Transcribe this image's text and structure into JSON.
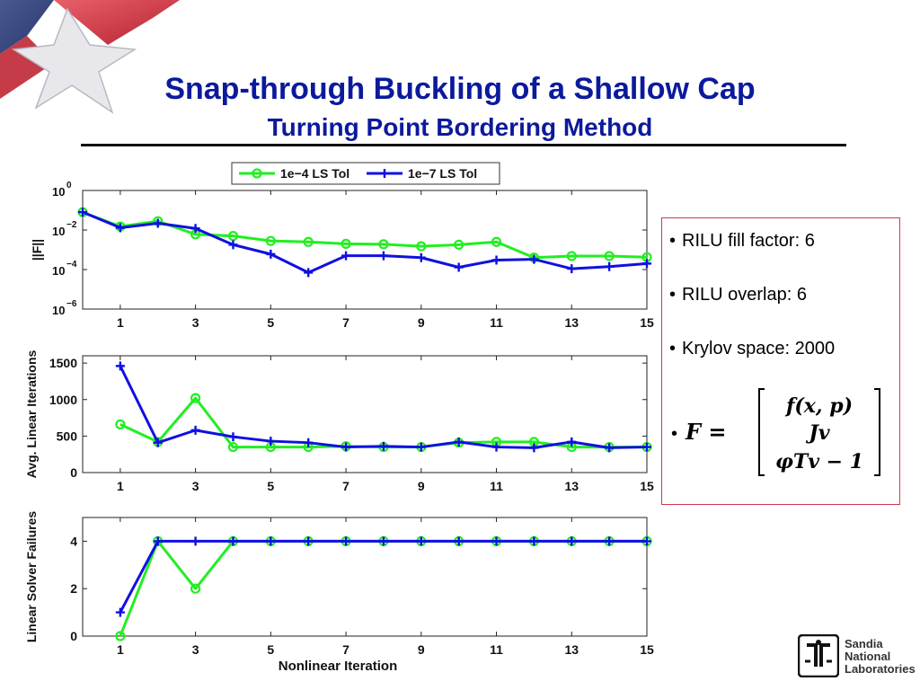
{
  "slide": {
    "title": "Snap-through Buckling of a Shallow Cap",
    "subtitle": "Turning Point Bordering Method"
  },
  "info": {
    "bullets": [
      "RILU fill factor:  6",
      "RILU overlap: 6",
      "Krylov space:  2000"
    ],
    "equation": {
      "lhs": "F =",
      "rows": [
        "f(x, p)",
        "Jv",
        "φTv − 1"
      ]
    }
  },
  "logo": {
    "lines": [
      "Sandia",
      "National",
      "Laboratories"
    ]
  },
  "legend": [
    "1e−4 LS Tol",
    "1e−7 LS Tol"
  ],
  "colors": {
    "green": "#22ee22",
    "blue": "#1010e0",
    "title": "#0b1a9c",
    "box_border": "#d03a4a"
  },
  "chart_data": [
    {
      "type": "line",
      "ylabel": "||F||",
      "xlabel": "",
      "yscale": "log",
      "x": [
        0,
        1,
        2,
        3,
        4,
        5,
        6,
        7,
        8,
        9,
        10,
        11,
        12,
        13,
        14,
        15
      ],
      "xticks": [
        1,
        3,
        5,
        7,
        9,
        11,
        13,
        15
      ],
      "xlim": [
        0,
        15
      ],
      "ylim_exp": [
        -6,
        0
      ],
      "yticks_exp": [
        0,
        -2,
        -4,
        -6
      ],
      "series": [
        {
          "name": "1e−4 LS Tol",
          "marker": "circle",
          "values": [
            0.08,
            0.015,
            0.028,
            0.006,
            0.005,
            0.0028,
            0.0025,
            0.002,
            0.0019,
            0.0015,
            0.0018,
            0.0025,
            0.0004,
            0.00048,
            0.00048,
            0.00042
          ]
        },
        {
          "name": "1e−7 LS Tol",
          "marker": "plus",
          "values": [
            0.08,
            0.013,
            0.022,
            0.012,
            0.0018,
            0.0006,
            7e-05,
            0.0005,
            0.0005,
            0.0004,
            0.00013,
            0.0003,
            0.00033,
            0.00011,
            0.00014,
            0.0002
          ]
        }
      ]
    },
    {
      "type": "line",
      "ylabel": "Avg. Linear Iterations",
      "xlabel": "",
      "x": [
        1,
        2,
        3,
        4,
        5,
        6,
        7,
        8,
        9,
        10,
        11,
        12,
        13,
        14,
        15
      ],
      "xticks": [
        1,
        3,
        5,
        7,
        9,
        11,
        13,
        15
      ],
      "xlim": [
        0,
        15
      ],
      "ylim": [
        0,
        1600
      ],
      "yticks": [
        0,
        500,
        1000,
        1500
      ],
      "series": [
        {
          "name": "1e−4 LS Tol",
          "marker": "circle",
          "values": [
            660,
            420,
            1020,
            350,
            350,
            350,
            360,
            350,
            350,
            410,
            420,
            420,
            350,
            350,
            350
          ]
        },
        {
          "name": "1e−7 LS Tol",
          "marker": "plus",
          "values": [
            1460,
            410,
            580,
            490,
            430,
            410,
            350,
            360,
            350,
            420,
            350,
            340,
            420,
            340,
            350
          ]
        }
      ]
    },
    {
      "type": "line",
      "ylabel": "Linear Solver Failures",
      "xlabel": "Nonlinear Iteration",
      "x": [
        1,
        2,
        3,
        4,
        5,
        6,
        7,
        8,
        9,
        10,
        11,
        12,
        13,
        14,
        15
      ],
      "xticks": [
        1,
        3,
        5,
        7,
        9,
        11,
        13,
        15
      ],
      "xlim": [
        0,
        15
      ],
      "ylim": [
        0,
        5
      ],
      "yticks": [
        0,
        2,
        4
      ],
      "series": [
        {
          "name": "1e−4 LS Tol",
          "marker": "circle",
          "values": [
            0,
            4,
            2,
            4,
            4,
            4,
            4,
            4,
            4,
            4,
            4,
            4,
            4,
            4,
            4
          ]
        },
        {
          "name": "1e−7 LS Tol",
          "marker": "plus",
          "values": [
            1,
            4,
            4,
            4,
            4,
            4,
            4,
            4,
            4,
            4,
            4,
            4,
            4,
            4,
            4
          ]
        }
      ]
    }
  ]
}
